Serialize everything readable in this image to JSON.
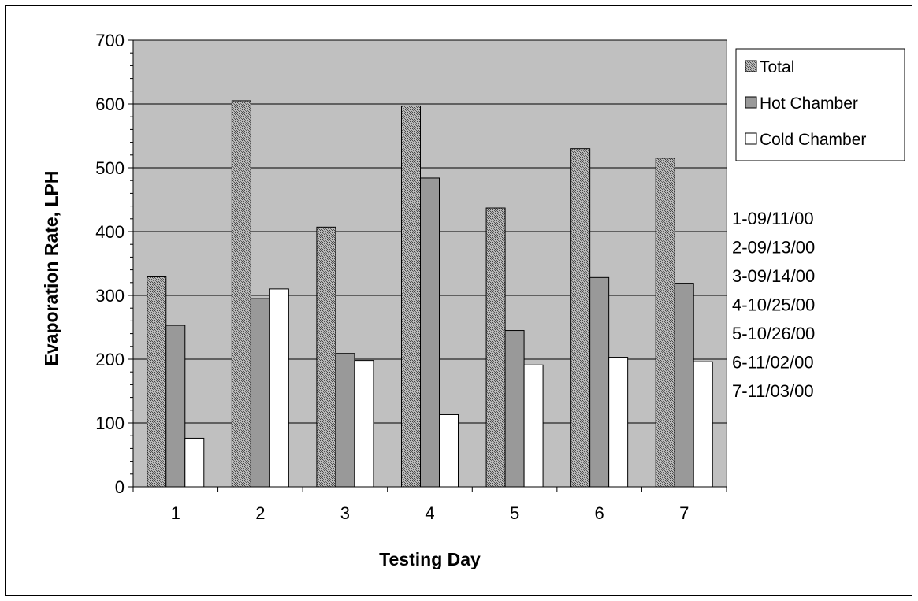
{
  "chart_data": {
    "type": "bar",
    "categories": [
      "1",
      "2",
      "3",
      "4",
      "5",
      "6",
      "7"
    ],
    "series": [
      {
        "name": "Total",
        "values": [
          329,
          605,
          407,
          597,
          437,
          530,
          515
        ],
        "fill": "crosshatch-dark"
      },
      {
        "name": "Hot Chamber",
        "values": [
          253,
          295,
          209,
          484,
          245,
          328,
          319
        ],
        "fill": "#999999"
      },
      {
        "name": "Cold Chamber",
        "values": [
          76,
          310,
          198,
          113,
          191,
          203,
          196
        ],
        "fill": "#ffffff"
      }
    ],
    "xlabel": "Testing Day",
    "ylabel": "Evaporation Rate, LPH",
    "ylim": [
      0,
      700
    ],
    "yticks": [
      0,
      100,
      200,
      300,
      400,
      500,
      600,
      700
    ],
    "grid": true,
    "plot_background": "#c0c0c0",
    "legend_position": "right",
    "annotations": [
      "1-09/11/00",
      "2-09/13/00",
      "3-09/14/00",
      "4-10/25/00",
      "5-10/26/00",
      "6-11/02/00",
      "7-11/03/00"
    ]
  }
}
